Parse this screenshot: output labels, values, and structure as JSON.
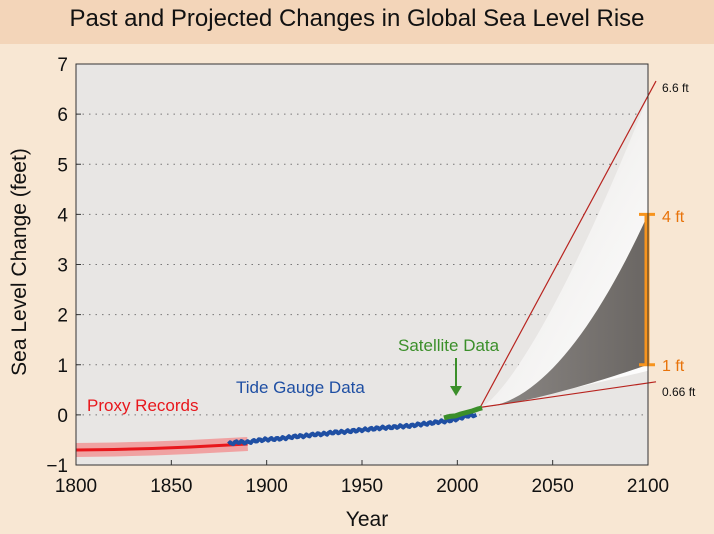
{
  "title": "Past and Projected Changes in Global Sea Level Rise",
  "chart_data": {
    "type": "line",
    "title": "Past and Projected Changes in Global Sea Level Rise",
    "xlabel": "Year",
    "ylabel": "Sea Level Change (feet)",
    "xlim": [
      1800,
      2100
    ],
    "ylim": [
      -1,
      7
    ],
    "xticks": [
      1800,
      1850,
      1900,
      1950,
      2000,
      2050,
      2100
    ],
    "yticks": [
      -1,
      0,
      1,
      2,
      3,
      4,
      5,
      6,
      7
    ],
    "grid": "horizontal dotted",
    "series": [
      {
        "name": "Proxy Records",
        "color": "#e8171c",
        "x": [
          1800,
          1820,
          1840,
          1860,
          1880,
          1890
        ],
        "y": [
          -0.7,
          -0.69,
          -0.67,
          -0.64,
          -0.6,
          -0.58
        ]
      },
      {
        "name": "Tide Gauge Data",
        "color": "#1f4fa3",
        "x": [
          1880,
          1885,
          1890,
          1895,
          1900,
          1905,
          1910,
          1915,
          1920,
          1925,
          1930,
          1935,
          1940,
          1945,
          1950,
          1955,
          1960,
          1965,
          1970,
          1975,
          1980,
          1985,
          1990,
          1995,
          2000,
          2005,
          2010
        ],
        "y": [
          -0.58,
          -0.54,
          -0.55,
          -0.51,
          -0.49,
          -0.48,
          -0.46,
          -0.43,
          -0.42,
          -0.39,
          -0.38,
          -0.35,
          -0.34,
          -0.32,
          -0.3,
          -0.28,
          -0.26,
          -0.25,
          -0.23,
          -0.22,
          -0.19,
          -0.17,
          -0.14,
          -0.12,
          -0.08,
          -0.02,
          0.0
        ]
      },
      {
        "name": "Satellite Data",
        "color": "#3b8f2a",
        "x": [
          1993,
          1996,
          1999,
          2002,
          2005,
          2008,
          2011,
          2013
        ],
        "y": [
          -0.06,
          -0.03,
          -0.02,
          0.02,
          0.05,
          0.08,
          0.12,
          0.14
        ]
      }
    ],
    "projection": {
      "start": [
        2012,
        0.15
      ],
      "end_year": 2100,
      "outer_range_ft": [
        0.66,
        6.6
      ],
      "likely_range_ft": [
        1,
        4
      ],
      "labels": [
        "6.6 ft",
        "4 ft",
        "1 ft",
        "0.66 ft"
      ]
    },
    "annotations": {
      "proxy": "Proxy Records",
      "tide": "Tide Gauge Data",
      "satellite": "Satellite Data"
    },
    "colors": {
      "background": "#f8e7d3",
      "plot_bg": "#e8e6e4",
      "projection_line": "#b8241f",
      "likely_fill": "#6e6a67",
      "range_bar": "#f7941d",
      "label_orange": "#e8730a"
    }
  }
}
